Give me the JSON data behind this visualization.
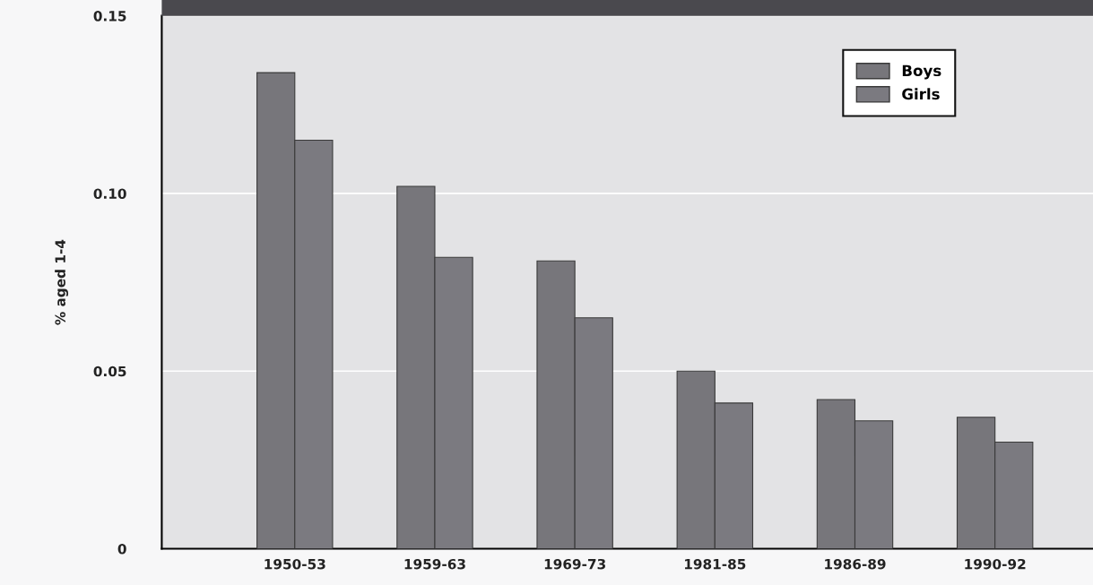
{
  "chart_data": {
    "type": "bar",
    "ylabel": "% aged 1-4",
    "categories": [
      "1950-53",
      "1959-63",
      "1969-73",
      "1981-85",
      "1986-89",
      "1990-92"
    ],
    "series": [
      {
        "name": "Boys",
        "color": "#77767b",
        "values": [
          0.134,
          0.102,
          0.081,
          0.05,
          0.042,
          0.037
        ]
      },
      {
        "name": "Girls",
        "color": "#7b7a80",
        "values": [
          0.115,
          0.082,
          0.065,
          0.041,
          0.036,
          0.03
        ]
      }
    ],
    "ylim": [
      0,
      0.15
    ],
    "yticks": [
      {
        "value": 0,
        "label": "0"
      },
      {
        "value": 0.05,
        "label": "0.05"
      },
      {
        "value": 0.1,
        "label": "0.10"
      },
      {
        "value": 0.15,
        "label": "0.15"
      }
    ],
    "grid": "y",
    "legend": "top right"
  }
}
